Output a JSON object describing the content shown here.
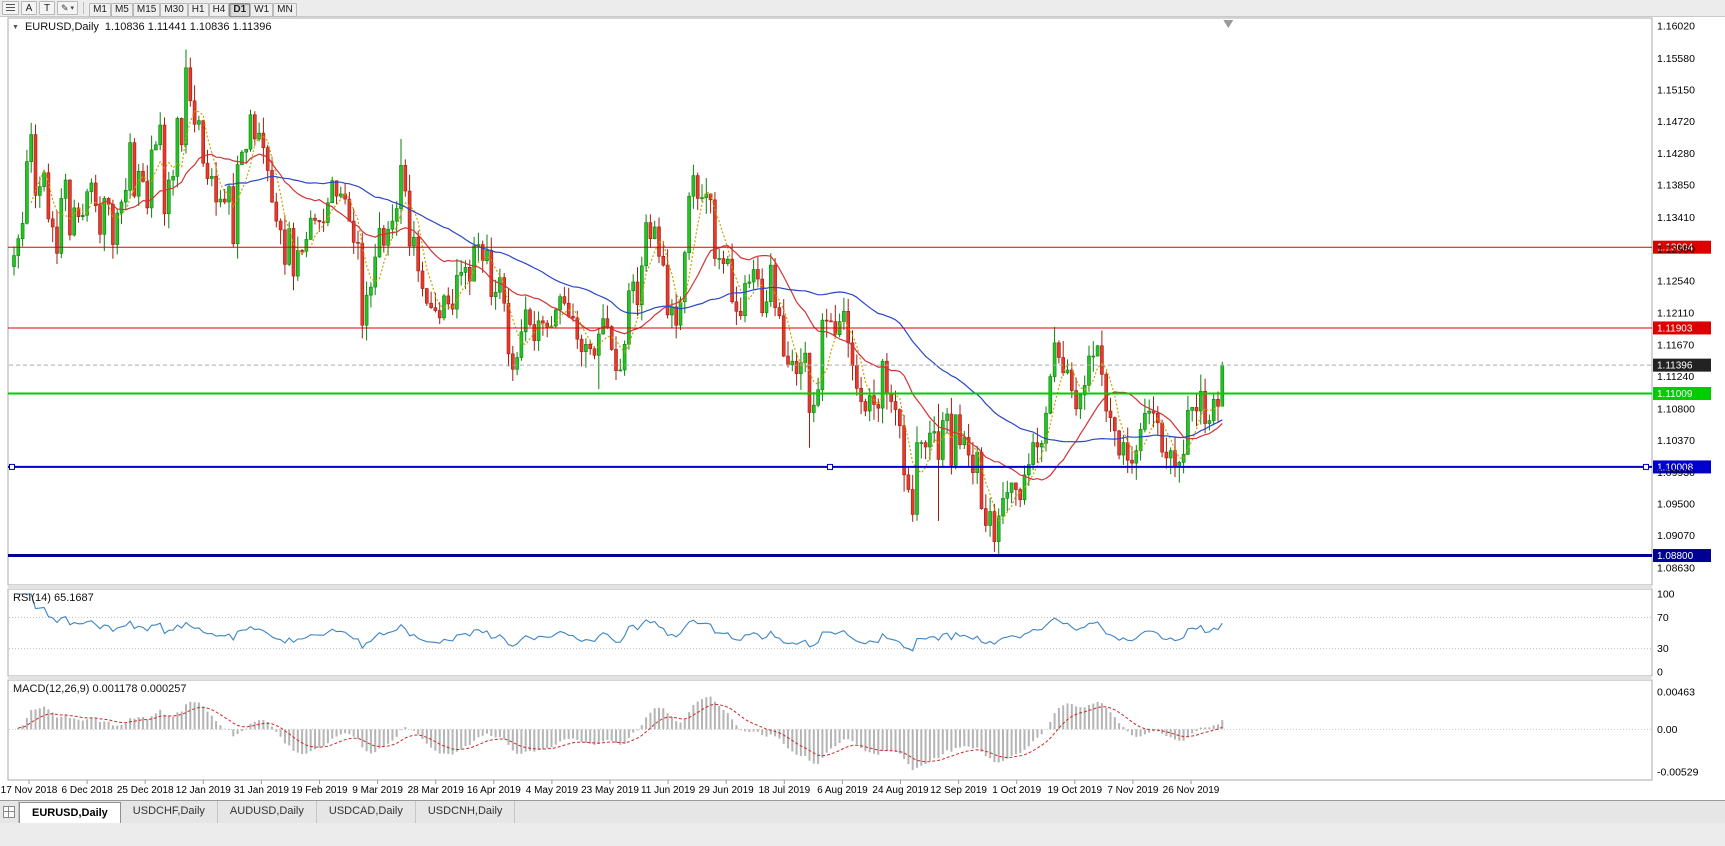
{
  "toolbar": {
    "tool_a_label": "A",
    "tool_t_label": "T",
    "pencil_glyph": "✎",
    "dropdown_glyph": "▾",
    "timeframes": [
      "M1",
      "M5",
      "M15",
      "M30",
      "H1",
      "H4",
      "D1",
      "W1",
      "MN"
    ],
    "active_timeframe": "D1"
  },
  "chart_header": {
    "collapse_icon": "▼",
    "symbol": "EURUSD,Daily",
    "ohlc": "1.10836 1.11441 1.10836 1.11396"
  },
  "tabs": {
    "items": [
      {
        "label": "EURUSD,Daily",
        "active": true
      },
      {
        "label": "USDCHF,Daily",
        "active": false
      },
      {
        "label": "AUDUSD,Daily",
        "active": false
      },
      {
        "label": "USDCAD,Daily",
        "active": false
      },
      {
        "label": "USDCNH,Daily",
        "active": false
      }
    ]
  },
  "chart_data": {
    "type": "candlestick",
    "symbol": "EURUSD",
    "timeframe": "Daily",
    "ohlc_current": {
      "open": 1.10836,
      "high": 1.11441,
      "low": 1.10836,
      "close": 1.11396
    },
    "closes": [
      1.1289,
      1.1312,
      1.1333,
      1.1417,
      1.1454,
      1.1371,
      1.1383,
      1.1402,
      1.1339,
      1.1328,
      1.1292,
      1.1367,
      1.1392,
      1.1317,
      1.1354,
      1.1342,
      1.1344,
      1.1376,
      1.1388,
      1.1357,
      1.1318,
      1.1367,
      1.1359,
      1.1304,
      1.1347,
      1.1362,
      1.1378,
      1.1443,
      1.137,
      1.1404,
      1.139,
      1.1354,
      1.1433,
      1.144,
      1.1467,
      1.1346,
      1.1392,
      1.1397,
      1.1476,
      1.144,
      1.1545,
      1.15,
      1.1468,
      1.1473,
      1.1415,
      1.1394,
      1.1397,
      1.1362,
      1.1366,
      1.1362,
      1.1383,
      1.1305,
      1.1413,
      1.143,
      1.1434,
      1.1481,
      1.1448,
      1.1456,
      1.1436,
      1.1405,
      1.1362,
      1.1336,
      1.1324,
      1.1277,
      1.1326,
      1.1261,
      1.1296,
      1.1295,
      1.1311,
      1.134,
      1.1337,
      1.1335,
      1.1334,
      1.1361,
      1.1391,
      1.137,
      1.1373,
      1.1366,
      1.1336,
      1.1307,
      1.1306,
      1.1194,
      1.1235,
      1.1246,
      1.1287,
      1.1326,
      1.1303,
      1.1325,
      1.1336,
      1.1353,
      1.1412,
      1.1377,
      1.1302,
      1.1314,
      1.1268,
      1.1244,
      1.1224,
      1.1218,
      1.1214,
      1.1204,
      1.1234,
      1.1223,
      1.1216,
      1.1262,
      1.1266,
      1.1273,
      1.1254,
      1.1302,
      1.1304,
      1.1282,
      1.1296,
      1.1233,
      1.1239,
      1.1259,
      1.1224,
      1.1155,
      1.1134,
      1.115,
      1.1185,
      1.1215,
      1.1195,
      1.1173,
      1.12,
      1.1197,
      1.1191,
      1.1193,
      1.1215,
      1.1233,
      1.1224,
      1.1206,
      1.1204,
      1.1175,
      1.1158,
      1.1168,
      1.1162,
      1.1153,
      1.1182,
      1.1203,
      1.1192,
      1.1161,
      1.1132,
      1.1133,
      1.1168,
      1.1241,
      1.1253,
      1.1222,
      1.1275,
      1.1334,
      1.1312,
      1.1328,
      1.1288,
      1.1276,
      1.1208,
      1.1219,
      1.1194,
      1.1226,
      1.1293,
      1.137,
      1.1398,
      1.1367,
      1.1368,
      1.1373,
      1.1365,
      1.1285,
      1.1285,
      1.1278,
      1.1284,
      1.1226,
      1.1213,
      1.1207,
      1.1251,
      1.1253,
      1.127,
      1.1257,
      1.1211,
      1.1226,
      1.1276,
      1.1218,
      1.1207,
      1.1152,
      1.114,
      1.1145,
      1.1128,
      1.1143,
      1.1156,
      1.1075,
      1.1085,
      1.1106,
      1.1201,
      1.12,
      1.1199,
      1.1181,
      1.1199,
      1.1213,
      1.117,
      1.1139,
      1.1108,
      1.109,
      1.1077,
      1.1098,
      1.1086,
      1.1081,
      1.1145,
      1.11,
      1.109,
      1.1079,
      1.1057,
      1.099,
      1.097,
      1.0936,
      1.1034,
      1.1034,
      1.1028,
      1.1047,
      1.1049,
      1.1011,
      1.1064,
      1.1073,
      1.1003,
      1.1072,
      1.1031,
      1.1041,
      1.1017,
      1.0993,
      1.1021,
      1.0944,
      1.0921,
      1.094,
      1.0899,
      1.0934,
      1.0958,
      1.0966,
      1.0979,
      1.097,
      1.0956,
      1.099,
      1.1004,
      1.1034,
      1.1028,
      1.1033,
      1.1074,
      1.1124,
      1.117,
      1.115,
      1.1129,
      1.1133,
      1.1105,
      1.108,
      1.1099,
      1.1112,
      1.1152,
      1.1152,
      1.1166,
      1.1127,
      1.1077,
      1.1068,
      1.105,
      1.1017,
      1.1034,
      1.101,
      1.1006,
      1.1023,
      1.1052,
      1.1074,
      1.1077,
      1.1074,
      1.1061,
      1.1021,
      1.1013,
      1.1023,
      1.1001,
      1.1007,
      1.1018,
      1.1078,
      1.1082,
      1.1077,
      1.1104,
      1.106,
      1.1064,
      1.1093,
      1.10836,
      1.11396
    ],
    "wick_overrides": {
      "40": {
        "h": 1.157
      },
      "81": {
        "h": 1.132,
        "l": 1.1176
      },
      "90": {
        "h": 1.1448
      },
      "116": {
        "l": 1.1118
      },
      "136": {
        "l": 1.1107
      },
      "185": {
        "l": 1.1027
      },
      "209": {
        "l": 1.0926
      },
      "215": {
        "h": 1.1087,
        "l": 1.0927
      },
      "228": {
        "l": 1.0885
      },
      "229": {
        "l": 1.0879
      },
      "281": {
        "h": 1.11441,
        "l": 1.10836
      }
    },
    "candle_colors": {
      "up_fill": "#25c325",
      "up_edge": "#0b800b",
      "down_fill": "#e63b2c",
      "down_edge": "#a31c10"
    },
    "moving_averages": [
      {
        "period": 5,
        "color": "#c7a300",
        "style": "dotted"
      },
      {
        "period": 20,
        "color": "#d23333",
        "style": "solid"
      },
      {
        "period": 50,
        "color": "#2946c8",
        "style": "solid"
      }
    ],
    "price_axis": {
      "min": 1.0863,
      "max": 1.1602,
      "ticks": [
        "1.16020",
        "1.15580",
        "1.15150",
        "1.14720",
        "1.14280",
        "1.13850",
        "1.13410",
        "1.12980",
        "1.12540",
        "1.12110",
        "1.11670",
        "1.11240",
        "1.10800",
        "1.10370",
        "1.09930",
        "1.09500",
        "1.09070",
        "1.08630"
      ]
    },
    "hlines": [
      {
        "value": 1.13004,
        "label": "1.13004",
        "color": "#dd0000",
        "width": 1,
        "handles": false
      },
      {
        "value": 1.11903,
        "label": "1.11903",
        "color": "#dd0000",
        "width": 1,
        "handles": false
      },
      {
        "value": 1.11009,
        "label": "1.11009",
        "color": "#00cc00",
        "width": 2,
        "handles": false
      },
      {
        "value": 1.10008,
        "label": "1.10008",
        "color": "#0000cc",
        "width": 2,
        "handles": true
      },
      {
        "value": 1.088,
        "label": "1.08800",
        "color": "#000095",
        "width": 3,
        "handles": false
      }
    ],
    "bid_line": {
      "value": 1.11396,
      "label": "1.11396",
      "line_color": "#aaaaaa",
      "label_bg": "#222222"
    },
    "dates": [
      "17 Nov 2018",
      "6 Dec 2018",
      "25 Dec 2018",
      "12 Jan 2019",
      "31 Jan 2019",
      "19 Feb 2019",
      "9 Mar 2019",
      "28 Mar 2019",
      "16 Apr 2019",
      "4 May 2019",
      "23 May 2019",
      "11 Jun 2019",
      "29 Jun 2019",
      "18 Jul 2019",
      "6 Aug 2019",
      "24 Aug 2019",
      "12 Sep 2019",
      "1 Oct 2019",
      "19 Oct 2019",
      "7 Nov 2019",
      "26 Nov 2019"
    ],
    "indicators": [
      {
        "name": "RSI",
        "params": "14",
        "display": "RSI(14) 65.1687",
        "value": 65.1687,
        "levels": [
          "100",
          "70",
          "30",
          "0"
        ],
        "level_values": [
          100,
          70,
          30,
          0
        ],
        "line_color": "#3d85c6"
      },
      {
        "name": "MACD",
        "params": "12,26,9",
        "display": "MACD(12,26,9) 0.001178 0.000257",
        "values": [
          0.001178,
          0.000257
        ],
        "scale_labels": [
          "0.00463",
          "0.00",
          "-0.00529"
        ],
        "scale_values": [
          0.00463,
          0,
          -0.00529
        ],
        "histogram_color": "#b4b4b4",
        "signal_color": "#cc2a2a"
      }
    ]
  }
}
